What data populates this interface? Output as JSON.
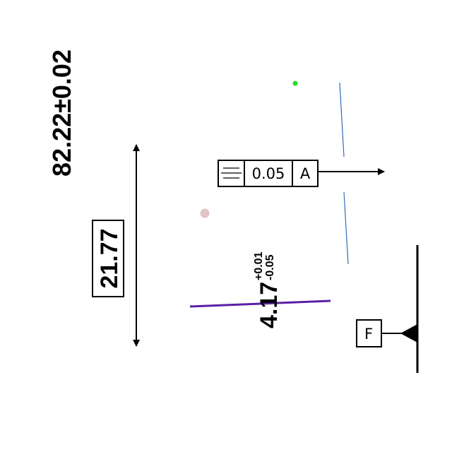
{
  "dimensions": {
    "overall": {
      "nominal": "82.22",
      "tolerance": "±0.02"
    },
    "basic": {
      "value": "21.77"
    },
    "toleranced": {
      "nominal": "4.17",
      "upper_tolerance": "+0.01",
      "lower_tolerance": "-0.05"
    }
  },
  "feature_control_frame": {
    "symbol_icon": "symmetry-icon",
    "tolerance": "0.05",
    "datum_reference": "A"
  },
  "datum_feature": {
    "label": "F"
  },
  "colors": {
    "ink": "#000000",
    "purple_line": "#5b1fa6",
    "blue_line": "#2f6db5",
    "green_dot": "#22dd22",
    "pink_dot": "#e2c3c8"
  }
}
